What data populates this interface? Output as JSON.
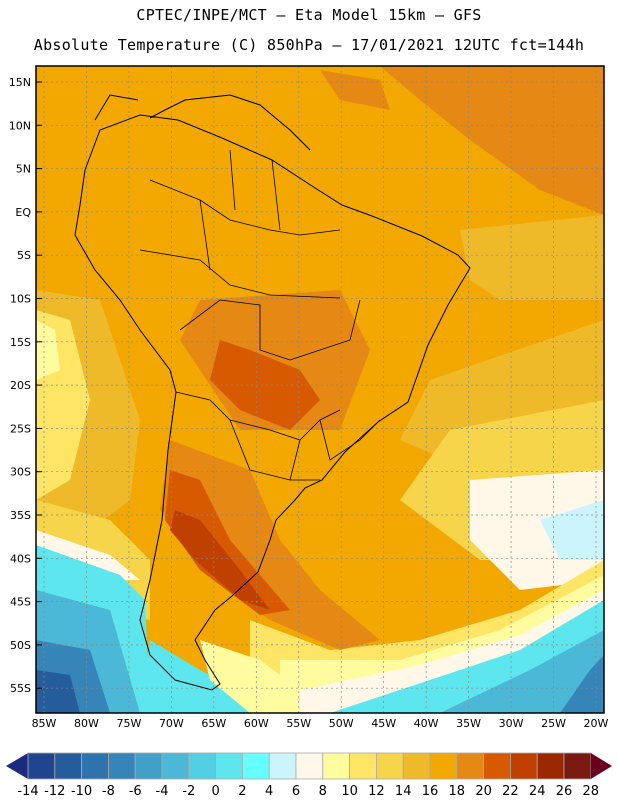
{
  "header": {
    "line1": "CPTEC/INPE/MCT –  Eta Model 15km – GFS",
    "line2": "Absolute Temperature (C) 850hPa – 17/01/2021 12UTC fct=144h"
  },
  "map": {
    "lat_labels": [
      "15N",
      "10N",
      "5N",
      "EQ",
      "5S",
      "10S",
      "15S",
      "20S",
      "25S",
      "30S",
      "35S",
      "40S",
      "45S",
      "50S",
      "55S"
    ],
    "lon_labels": [
      "85W",
      "80W",
      "75W",
      "70W",
      "65W",
      "60W",
      "55W",
      "50W",
      "45W",
      "40W",
      "35W",
      "30W",
      "25W",
      "20W"
    ]
  },
  "colorbar": {
    "labels": [
      "-14",
      "-12",
      "-10",
      "-8",
      "-6",
      "-4",
      "-2",
      "0",
      "2",
      "4",
      "6",
      "8",
      "10",
      "12",
      "14",
      "16",
      "18",
      "20",
      "22",
      "24",
      "26",
      "28"
    ],
    "low_arrow_color": "#1a2a80",
    "high_arrow_color": "#6a0020",
    "colors": [
      "#1f4590",
      "#255c9c",
      "#2e73ad",
      "#3685b8",
      "#40a0c8",
      "#4ab8d6",
      "#52cfe2",
      "#5ee6ee",
      "#66ffff",
      "#ccf4fc",
      "#fff8e8",
      "#fffca0",
      "#ffe566",
      "#f7d54a",
      "#efba2a",
      "#f2a800",
      "#e58814",
      "#d85a00",
      "#c04000",
      "#9c2800",
      "#7a1a10"
    ]
  }
}
